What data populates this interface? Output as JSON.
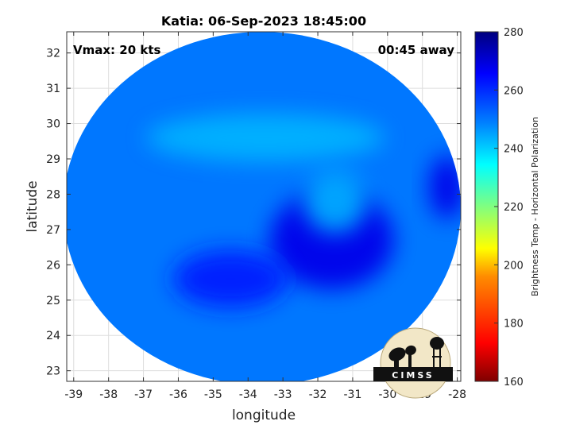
{
  "chart_data": {
    "type": "heatmap",
    "title": "Katia: 06-Sep-2023 18:45:00",
    "xlabel": "longitude",
    "ylabel": "latitude",
    "xlim": [
      -39.2,
      -27.9
    ],
    "ylim": [
      22.7,
      32.6
    ],
    "xticks": [
      -39,
      -38,
      -37,
      -36,
      -35,
      -34,
      -33,
      -32,
      -31,
      -30,
      -29,
      -28
    ],
    "yticks": [
      23,
      24,
      25,
      26,
      27,
      28,
      29,
      30,
      31,
      32
    ],
    "grid": true,
    "annotations": {
      "top_left": "Vmax: 20 kts",
      "top_right": "00:45 away"
    },
    "swath": {
      "center": [
        -33.6,
        27.6
      ],
      "radius_deg_lon": 5.7,
      "radius_deg_lat": 5.0,
      "background_value": 250,
      "features": [
        {
          "lon": -31.6,
          "lat": 26.7,
          "value": 268
        },
        {
          "lon": -34.5,
          "lat": 25.6,
          "value": 262
        },
        {
          "lon": -28.3,
          "lat": 28.2,
          "value": 268
        },
        {
          "lon": -33.5,
          "lat": 29.6,
          "value": 243
        },
        {
          "lon": -31.5,
          "lat": 27.8,
          "value": 244
        }
      ]
    },
    "colorbar": {
      "label": "Brightness Temp - Horizontal Polarization",
      "range": [
        160,
        280
      ],
      "ticks": [
        160,
        180,
        200,
        220,
        240,
        260,
        280
      ],
      "colormap": "jet"
    }
  },
  "logo": {
    "text": "CIMSS"
  }
}
